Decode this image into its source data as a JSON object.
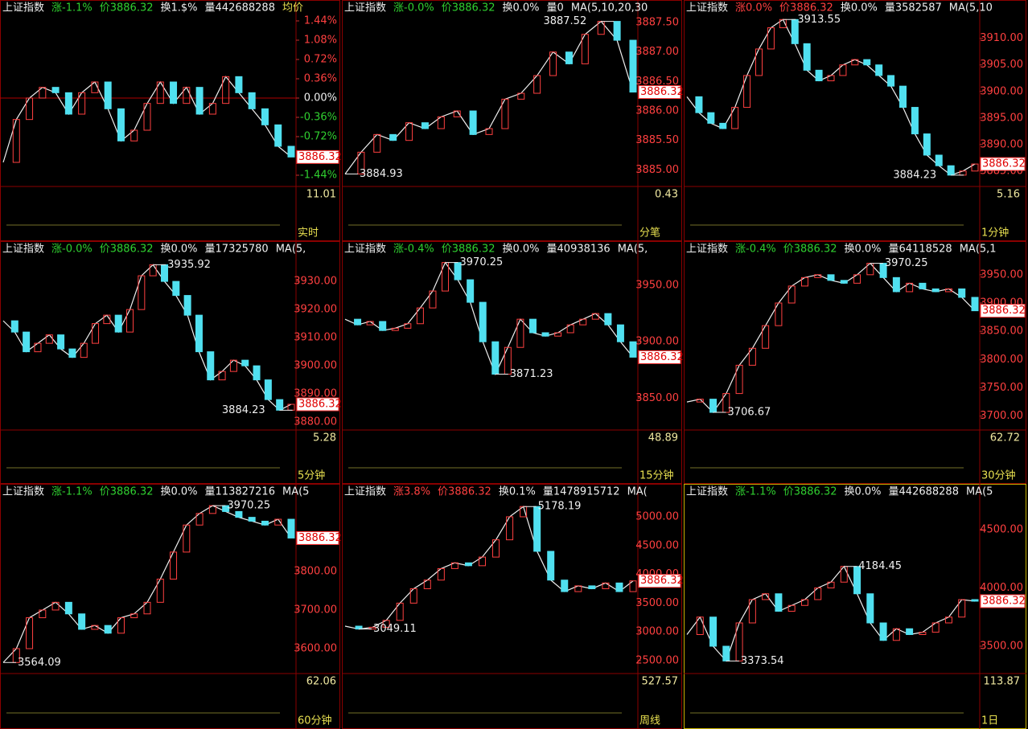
{
  "panels": [
    {
      "header": [
        {
          "text": "上证指数",
          "color": "#f0f0f0"
        },
        {
          "text": "涨-1.1%",
          "color": "#30d030"
        },
        {
          "text": "价3886.32",
          "color": "#30d030"
        },
        {
          "text": "换1.$%",
          "color": "#f0f0f0"
        },
        {
          "text": "量442688288",
          "color": "#f0f0f0"
        },
        {
          "text": "均价",
          "color": "#e8e050"
        }
      ],
      "ylim": [
        -1.56,
        1.53
      ],
      "yticks": [
        {
          "value": 1.44,
          "label": "1.44%"
        },
        {
          "value": 1.08,
          "label": "1.08%"
        },
        {
          "value": 0.72,
          "label": "0.72%"
        },
        {
          "value": 0.36,
          "label": "0.36%"
        },
        {
          "value": 0,
          "label": "0.00%"
        },
        {
          "value": -0.36,
          "label": "-0.36%"
        },
        {
          "value": -0.72,
          "label": "-0.72%"
        },
        {
          "value": -1.44,
          "label": "-1.44%"
        }
      ],
      "price_label": "3886.32",
      "price_value": -1.1,
      "close": [
        -1.2,
        -0.4,
        0.0,
        0.2,
        0.1,
        -0.3,
        0.1,
        0.3,
        -0.2,
        -0.8,
        -0.6,
        -0.1,
        0.3,
        -0.1,
        0.2,
        -0.3,
        -0.1,
        0.4,
        0.1,
        -0.2,
        -0.5,
        -0.9,
        -1.1
      ],
      "sub_value": "11.01",
      "period": "实时"
    },
    {
      "header": [
        {
          "text": "上证指数",
          "color": "#f0f0f0"
        },
        {
          "text": "涨-0.0%",
          "color": "#30d030"
        },
        {
          "text": "价3886.32",
          "color": "#30d030"
        },
        {
          "text": "换0.0%",
          "color": "#f0f0f0"
        },
        {
          "text": "量0",
          "color": "#f0f0f0"
        },
        {
          "text": "MA(5,10,20,30",
          "color": "#f0f0f0"
        }
      ],
      "ylim": [
        3884.8,
        3887.61
      ],
      "yticks": [
        {
          "value": 3887.5,
          "label": "3887.50"
        },
        {
          "value": 3887,
          "label": "3887.00"
        },
        {
          "value": 3886.5,
          "label": "3886.50"
        },
        {
          "value": 3886,
          "label": "3886.00"
        },
        {
          "value": 3885.5,
          "label": "3885.50"
        },
        {
          "value": 3885,
          "label": "3885.00"
        }
      ],
      "price_label": "3886.32",
      "price_value": 3886.32,
      "close": [
        3884.93,
        3885.3,
        3885.6,
        3885.5,
        3885.8,
        3885.7,
        3885.9,
        3886.0,
        3885.6,
        3885.7,
        3886.2,
        3886.3,
        3886.6,
        3887.0,
        3886.8,
        3887.3,
        3887.52,
        3887.2,
        3886.32
      ],
      "high": 3887.52,
      "low": 3884.93,
      "sub_value": "0.43",
      "period": "分笔"
    },
    {
      "header": [
        {
          "text": "上证指数",
          "color": "#f0f0f0"
        },
        {
          "text": "涨0.0%",
          "color": "#ff4040"
        },
        {
          "text": "价3886.32",
          "color": "#ff4040"
        },
        {
          "text": "换0.0%",
          "color": "#f0f0f0"
        },
        {
          "text": "量3582587",
          "color": "#f0f0f0"
        },
        {
          "text": "MA(5,10",
          "color": "#f0f0f0"
        }
      ],
      "ylim": [
        3883,
        3914.2
      ],
      "yticks": [
        {
          "value": 3910,
          "label": "3910.00"
        },
        {
          "value": 3905,
          "label": "3905.00"
        },
        {
          "value": 3900,
          "label": "3900.00"
        },
        {
          "value": 3895,
          "label": "3895.00"
        },
        {
          "value": 3890,
          "label": "3890.00"
        },
        {
          "value": 3885,
          "label": "3885.00"
        }
      ],
      "price_label": "3886.32",
      "price_value": 3886.32,
      "close": [
        3899,
        3896,
        3894,
        3893,
        3897,
        3903,
        3908,
        3912,
        3913.55,
        3909,
        3904,
        3902,
        3903,
        3905,
        3906,
        3905,
        3903,
        3901,
        3897,
        3892,
        3888,
        3886,
        3884.23,
        3885,
        3886.32
      ],
      "high": 3913.55,
      "low": 3884.23,
      "sub_value": "5.16",
      "period": "1分钟"
    },
    {
      "header": [
        {
          "text": "上证指数",
          "color": "#f0f0f0"
        },
        {
          "text": "涨-0.0%",
          "color": "#30d030"
        },
        {
          "text": "价3886.32",
          "color": "#30d030"
        },
        {
          "text": "换0.0%",
          "color": "#f0f0f0"
        },
        {
          "text": "量17325780",
          "color": "#f0f0f0"
        },
        {
          "text": "MA(5,",
          "color": "#f0f0f0"
        }
      ],
      "ylim": [
        3878.9,
        3938.6
      ],
      "yticks": [
        {
          "value": 3930,
          "label": "3930.00"
        },
        {
          "value": 3920,
          "label": "3920.00"
        },
        {
          "value": 3910,
          "label": "3910.00"
        },
        {
          "value": 3900,
          "label": "3900.00"
        },
        {
          "value": 3890,
          "label": "3890.00"
        },
        {
          "value": 3880,
          "label": "3880.00"
        }
      ],
      "price_label": "3886.32",
      "price_value": 3886.32,
      "close": [
        3916,
        3912,
        3905,
        3908,
        3911,
        3906,
        3903,
        3908,
        3915,
        3918,
        3912,
        3920,
        3932,
        3935.92,
        3930,
        3925,
        3918,
        3905,
        3895,
        3898,
        3902,
        3900,
        3895,
        3888,
        3884.23,
        3886.32
      ],
      "high": 3935.92,
      "low": 3884.23,
      "sub_value": "5.28",
      "period": "5分钟"
    },
    {
      "header": [
        {
          "text": "上证指数",
          "color": "#f0f0f0"
        },
        {
          "text": "涨-0.4%",
          "color": "#30d030"
        },
        {
          "text": "价3886.32",
          "color": "#30d030"
        },
        {
          "text": "换0.0%",
          "color": "#f0f0f0"
        },
        {
          "text": "量40938136",
          "color": "#f0f0f0"
        },
        {
          "text": "MA(5,",
          "color": "#f0f0f0"
        }
      ],
      "ylim": [
        3826,
        3975
      ],
      "yticks": [
        {
          "value": 3950,
          "label": "3950.00"
        },
        {
          "value": 3900,
          "label": "3900.00"
        },
        {
          "value": 3850,
          "label": "3850.00"
        }
      ],
      "price_label": "3886.32",
      "price_value": 3886.32,
      "close": [
        3920,
        3915,
        3918,
        3910,
        3912,
        3916,
        3930,
        3945,
        3970.25,
        3955,
        3935,
        3900,
        3871.23,
        3895,
        3920,
        3908,
        3905,
        3908,
        3915,
        3920,
        3925,
        3915,
        3900,
        3886.32
      ],
      "high": 3970.25,
      "low": 3871.23,
      "sub_value": "48.89",
      "period": "15分钟"
    },
    {
      "header": [
        {
          "text": "上证指数",
          "color": "#f0f0f0"
        },
        {
          "text": "涨-0.4%",
          "color": "#30d030"
        },
        {
          "text": "价3886.32",
          "color": "#30d030"
        },
        {
          "text": "换0.0%",
          "color": "#f0f0f0"
        },
        {
          "text": "量64118528",
          "color": "#f0f0f0"
        },
        {
          "text": "MA(5,1",
          "color": "#f0f0f0"
        }
      ],
      "ylim": [
        3684,
        3981
      ],
      "yticks": [
        {
          "value": 3950,
          "label": "3950.00"
        },
        {
          "value": 3900,
          "label": "3900.00"
        },
        {
          "value": 3850,
          "label": "3850.00"
        },
        {
          "value": 3800,
          "label": "3800.00"
        },
        {
          "value": 3750,
          "label": "3750.00"
        },
        {
          "value": 3700,
          "label": "3700.00"
        }
      ],
      "price_label": "3886.32",
      "price_value": 3886.32,
      "close": [
        3725,
        3730,
        3706.67,
        3740,
        3790,
        3820,
        3860,
        3900,
        3930,
        3945,
        3950,
        3940,
        3935,
        3950,
        3970.25,
        3945,
        3920,
        3935,
        3925,
        3920,
        3925,
        3910,
        3886.32
      ],
      "high": 3970.25,
      "low": 3706.67,
      "sub_value": "62.72",
      "period": "30分钟"
    },
    {
      "header": [
        {
          "text": "上证指数",
          "color": "#f0f0f0"
        },
        {
          "text": "涨-1.1%",
          "color": "#30d030"
        },
        {
          "text": "价3886.32",
          "color": "#30d030"
        },
        {
          "text": "换0.0%",
          "color": "#f0f0f0"
        },
        {
          "text": "量113827216",
          "color": "#f0f0f0"
        },
        {
          "text": "MA(5",
          "color": "#f0f0f0"
        }
      ],
      "ylim": [
        3548,
        3985
      ],
      "yticks": [
        {
          "value": 3800,
          "label": "3800.00"
        },
        {
          "value": 3700,
          "label": "3700.00"
        },
        {
          "value": 3600,
          "label": "3600.00"
        }
      ],
      "price_label": "3886.32",
      "price_value": 3886.32,
      "close": [
        3564.09,
        3600,
        3680,
        3700,
        3720,
        3690,
        3650,
        3660,
        3640,
        3680,
        3690,
        3720,
        3780,
        3850,
        3920,
        3950,
        3970.25,
        3955,
        3940,
        3930,
        3920,
        3935,
        3886.32
      ],
      "high": 3970.25,
      "low": 3564.09,
      "sub_value": "62.06",
      "period": "60分钟"
    },
    {
      "header": [
        {
          "text": "上证指数",
          "color": "#f0f0f0"
        },
        {
          "text": "涨3.8%",
          "color": "#ff4040"
        },
        {
          "text": "价3886.32",
          "color": "#ff4040"
        },
        {
          "text": "换0.1%",
          "color": "#f0f0f0"
        },
        {
          "text": "量1478915712",
          "color": "#f0f0f0"
        },
        {
          "text": "MA(",
          "color": "#f0f0f0"
        }
      ],
      "ylim": [
        2360,
        5293
      ],
      "yticks": [
        {
          "value": 5000,
          "label": "5000.00"
        },
        {
          "value": 4500,
          "label": "4500.00"
        },
        {
          "value": 4000,
          "label": "4000.00"
        },
        {
          "value": 3500,
          "label": "3500.00"
        },
        {
          "value": 3000,
          "label": "3000.00"
        },
        {
          "value": 2500,
          "label": "2500.00"
        }
      ],
      "price_label": "3886.32",
      "price_value": 3886.32,
      "close": [
        3100,
        3049.11,
        3080,
        3200,
        3500,
        3750,
        3900,
        4100,
        4200,
        4150,
        4300,
        4600,
        5000,
        5178.19,
        4400,
        3900,
        3700,
        3800,
        3750,
        3850,
        3700,
        3886.32
      ],
      "high": 5178.19,
      "low": 3049.11,
      "sub_value": "527.57",
      "period": "周线"
    },
    {
      "header": [
        {
          "text": "上证指数",
          "color": "#f0f0f0"
        },
        {
          "text": "涨-1.1%",
          "color": "#30d030"
        },
        {
          "text": "价3886.32",
          "color": "#30d030"
        },
        {
          "text": "换0.0%",
          "color": "#f0f0f0"
        },
        {
          "text": "量442688288",
          "color": "#f0f0f0"
        },
        {
          "text": "MA(5",
          "color": "#f0f0f0"
        }
      ],
      "ylim": [
        3307,
        4755
      ],
      "yticks": [
        {
          "value": 4500,
          "label": "4500.00"
        },
        {
          "value": 4000,
          "label": "4000.00"
        },
        {
          "value": 3500,
          "label": "3500.00"
        }
      ],
      "price_label": "3886.32",
      "price_value": 3886.32,
      "close": [
        3600,
        3750,
        3500,
        3373.54,
        3700,
        3900,
        3950,
        3800,
        3850,
        3900,
        4000,
        4050,
        4184.45,
        3950,
        3700,
        3550,
        3650,
        3600,
        3620,
        3700,
        3750,
        3900,
        3886.32
      ],
      "high": 4184.45,
      "low": 3373.54,
      "sub_value": "113.87",
      "period": "1日"
    }
  ]
}
